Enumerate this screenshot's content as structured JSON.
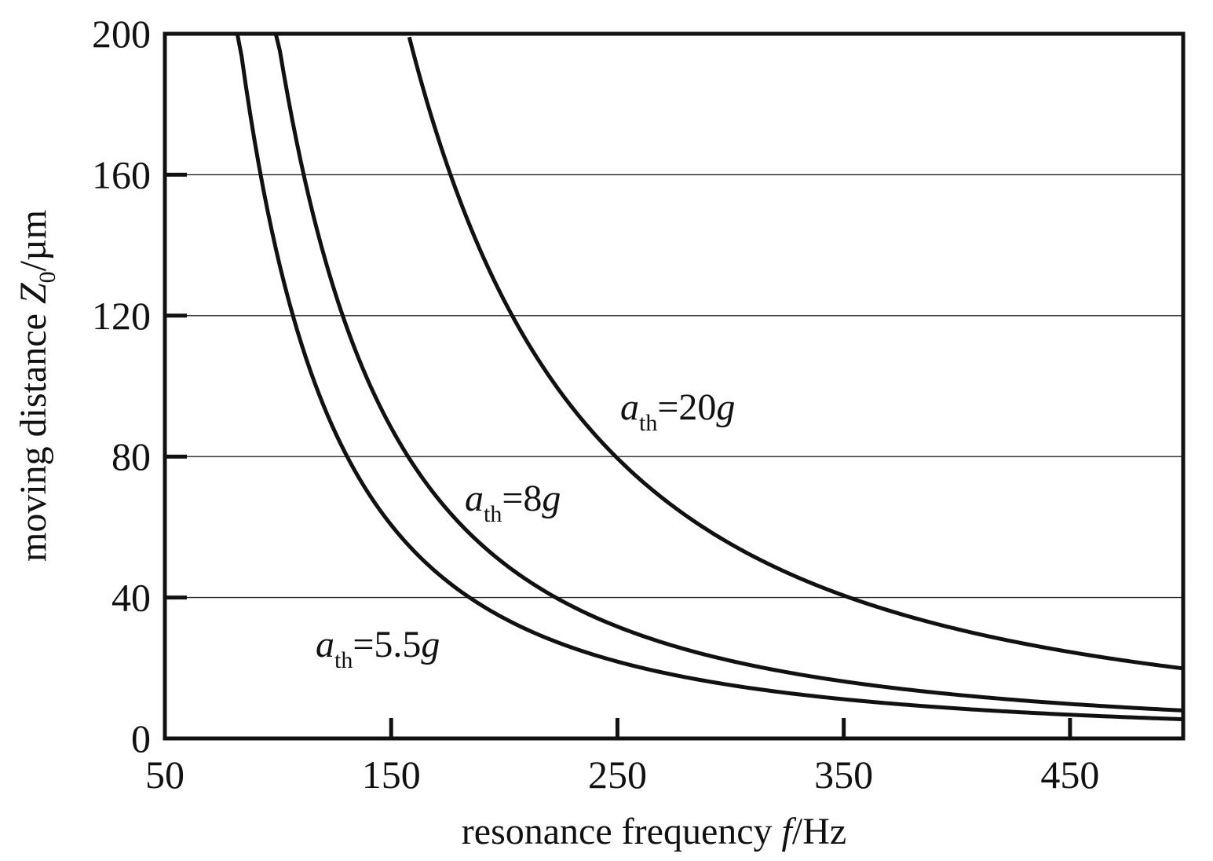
{
  "chart_data": {
    "type": "line",
    "xlabel": {
      "prefix": "resonance frequency ",
      "var": "f",
      "unit": "/Hz"
    },
    "ylabel": {
      "prefix": "moving distance ",
      "var": "Z",
      "sub": "0",
      "unit": "/µm"
    },
    "xlim": [
      50,
      500
    ],
    "ylim": [
      0,
      200
    ],
    "xticks": [
      50,
      150,
      250,
      350,
      450
    ],
    "yticks": [
      0,
      40,
      80,
      120,
      160,
      200
    ],
    "grid": "horizontal",
    "series": [
      {
        "label": {
          "var": "a",
          "sub": "th",
          "rest": "=5.5",
          "unit": "g"
        },
        "x": [
          82,
          90,
          100,
          110,
          120,
          130,
          150,
          175,
          200,
          250,
          300,
          350,
          400,
          450,
          500
        ],
        "y": [
          200,
          168.5,
          136.5,
          112.8,
          94.8,
          80.8,
          60.7,
          44.6,
          34.1,
          21.8,
          15.2,
          11.1,
          8.5,
          6.7,
          5.5
        ]
      },
      {
        "label": {
          "var": "a",
          "sub": "th",
          "rest": "=8",
          "unit": "g"
        },
        "x": [
          99,
          110,
          120,
          130,
          150,
          175,
          200,
          225,
          250,
          300,
          350,
          400,
          450,
          500
        ],
        "y": [
          200,
          164.1,
          137.9,
          117.5,
          88.3,
          64.9,
          49.7,
          39.3,
          31.8,
          22.1,
          16.2,
          12.4,
          9.8,
          7.9
        ]
      },
      {
        "label": {
          "var": "a",
          "sub": "th",
          "rest": "=20",
          "unit": "g"
        },
        "x": [
          158,
          170,
          180,
          200,
          225,
          250,
          275,
          300,
          350,
          400,
          450,
          500
        ],
        "y": [
          200,
          171.9,
          153.4,
          124.2,
          98.1,
          79.5,
          65.7,
          55.2,
          40.5,
          31.0,
          24.5,
          19.9
        ]
      }
    ]
  }
}
